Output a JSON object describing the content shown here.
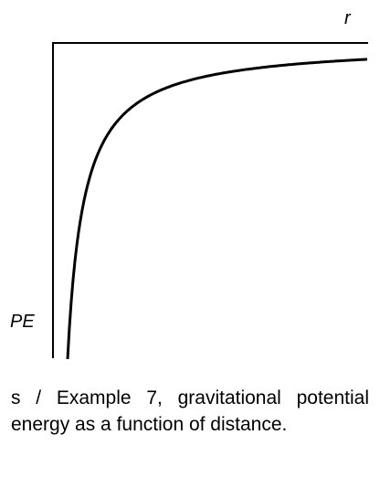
{
  "axes": {
    "x_label": "r",
    "y_label": "PE"
  },
  "caption": "s / Example 7, gravitational potential energy as a function of distance."
}
